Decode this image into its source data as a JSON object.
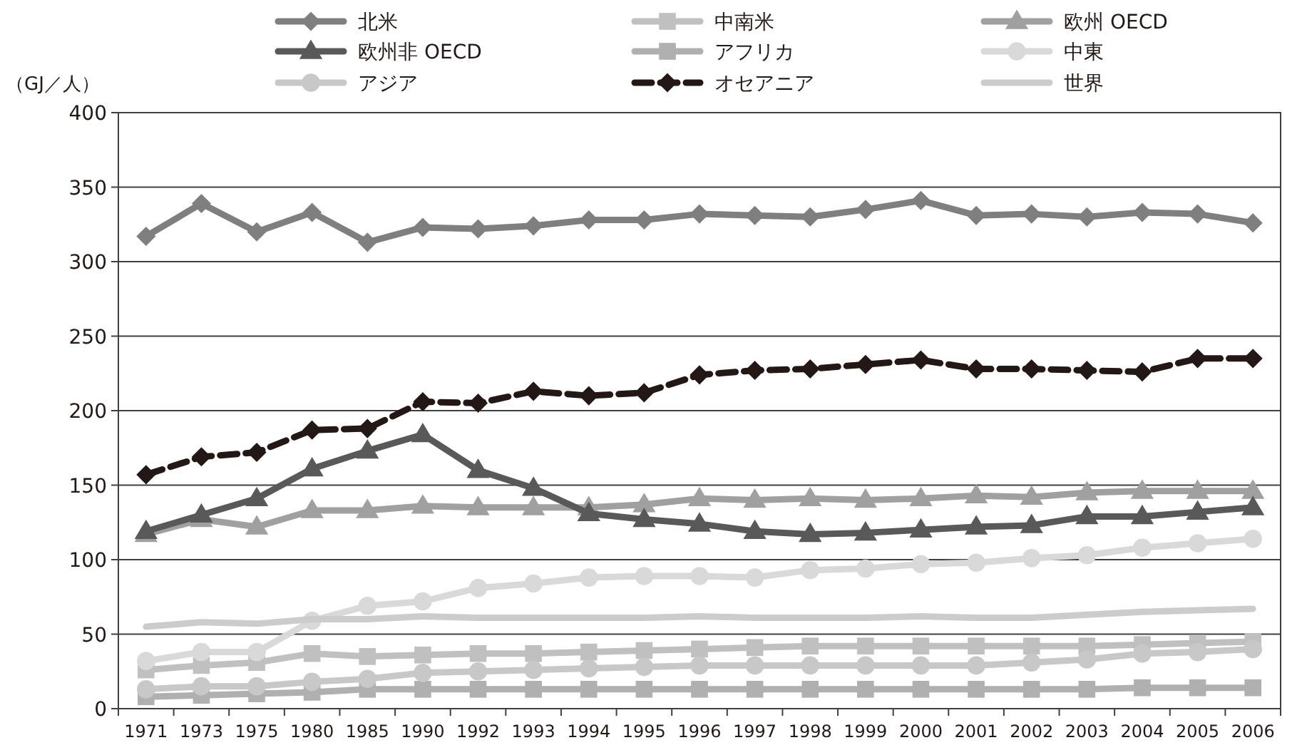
{
  "chart_data": {
    "type": "line",
    "ylabel": "（GJ／人）",
    "categories": [
      "1971",
      "1973",
      "1975",
      "1980",
      "1985",
      "1990",
      "1992",
      "1993",
      "1994",
      "1995",
      "1996",
      "1997",
      "1998",
      "1999",
      "2000",
      "2001",
      "2002",
      "2003",
      "2004",
      "2005",
      "2006"
    ],
    "ylim": [
      0,
      400
    ],
    "yticks": [
      0,
      50,
      100,
      150,
      200,
      250,
      300,
      350,
      400
    ],
    "grid": "y",
    "legend": "top",
    "series": [
      {
        "name": "北米",
        "color": "#7f7f7f",
        "marker": "diamond",
        "values": [
          317,
          339,
          320,
          333,
          313,
          323,
          322,
          324,
          328,
          328,
          332,
          331,
          330,
          335,
          341,
          331,
          332,
          330,
          333,
          332,
          326
        ]
      },
      {
        "name": "中南米",
        "color": "#c0c0c0",
        "marker": "square",
        "values": [
          26,
          29,
          31,
          37,
          35,
          36,
          37,
          37,
          38,
          39,
          40,
          41,
          42,
          42,
          42,
          42,
          42,
          42,
          43,
          44,
          45
        ]
      },
      {
        "name": "欧州 OECD",
        "color": "#a0a0a0",
        "marker": "triangle",
        "values": [
          117,
          127,
          122,
          133,
          133,
          136,
          135,
          135,
          135,
          137,
          141,
          140,
          141,
          140,
          141,
          143,
          142,
          145,
          146,
          146,
          146
        ]
      },
      {
        "name": "欧州非 OECD",
        "color": "#595959",
        "marker": "triangle",
        "values": [
          119,
          130,
          141,
          161,
          173,
          184,
          160,
          148,
          131,
          127,
          124,
          119,
          117,
          118,
          120,
          122,
          123,
          129,
          129,
          132,
          135
        ]
      },
      {
        "name": "アフリカ",
        "color": "#b0b0b0",
        "marker": "square",
        "values": [
          8,
          9,
          10,
          11,
          13,
          13,
          13,
          13,
          13,
          13,
          13,
          13,
          13,
          13,
          13,
          13,
          13,
          13,
          14,
          14,
          14
        ]
      },
      {
        "name": "中東",
        "color": "#d9d9d9",
        "marker": "circle",
        "values": [
          32,
          38,
          38,
          59,
          69,
          72,
          81,
          84,
          88,
          89,
          89,
          88,
          93,
          94,
          97,
          98,
          101,
          103,
          108,
          111,
          114
        ]
      },
      {
        "name": "アジア",
        "color": "#c8c8c8",
        "marker": "circle",
        "values": [
          13,
          15,
          15,
          18,
          20,
          24,
          25,
          26,
          27,
          28,
          29,
          29,
          29,
          29,
          29,
          29,
          31,
          33,
          37,
          38,
          40
        ]
      },
      {
        "name": "オセアニア",
        "color": "#231815",
        "marker": "diamond",
        "line_style": "dashed",
        "values": [
          157,
          169,
          172,
          187,
          188,
          206,
          205,
          213,
          210,
          212,
          224,
          227,
          228,
          231,
          234,
          228,
          228,
          227,
          226,
          235,
          235
        ]
      },
      {
        "name": "世界",
        "color": "#cccccc",
        "marker": "none",
        "values": [
          55,
          58,
          57,
          60,
          60,
          62,
          61,
          61,
          61,
          61,
          62,
          61,
          61,
          61,
          62,
          61,
          61,
          63,
          65,
          66,
          67
        ]
      }
    ]
  }
}
